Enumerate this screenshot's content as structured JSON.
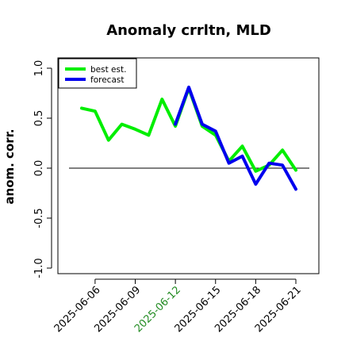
{
  "chart_data": {
    "type": "line",
    "title": "Anomaly crrltn, MLD",
    "xlabel": "",
    "ylabel": "anom. corr.",
    "ylim": [
      -1.0,
      1.0
    ],
    "yticks": [
      "-1.0",
      "-0.5",
      "0.0",
      "0.5",
      "1.0"
    ],
    "ytick_values": [
      -1.0,
      -0.5,
      0.0,
      0.5,
      1.0
    ],
    "xticks": [
      "2025-06-06",
      "2025-06-09",
      "2025-06-12",
      "2025-06-15",
      "2025-06-18",
      "2025-06-21"
    ],
    "xtick_colors": [
      "#000000",
      "#000000",
      "#228b22",
      "#000000",
      "#000000",
      "#000000"
    ],
    "x": [
      "2025-06-05",
      "2025-06-06",
      "2025-06-07",
      "2025-06-08",
      "2025-06-09",
      "2025-06-10",
      "2025-06-11",
      "2025-06-12",
      "2025-06-13",
      "2025-06-14",
      "2025-06-15",
      "2025-06-16",
      "2025-06-17",
      "2025-06-18",
      "2025-06-19",
      "2025-06-20",
      "2025-06-21"
    ],
    "series": [
      {
        "name": "best est.",
        "color": "#00ee00",
        "values": [
          0.6,
          0.57,
          0.28,
          0.44,
          0.39,
          0.33,
          0.69,
          0.42,
          0.8,
          0.42,
          0.33,
          0.07,
          0.22,
          -0.03,
          0.03,
          0.18,
          -0.02
        ]
      },
      {
        "name": "forecast",
        "color": "#0000ee",
        "values": [
          null,
          null,
          null,
          null,
          null,
          null,
          null,
          0.44,
          0.81,
          0.44,
          0.37,
          0.05,
          0.12,
          -0.16,
          0.05,
          0.03,
          -0.21
        ]
      }
    ],
    "grid": false,
    "legend_position": "top-left",
    "reference_line": 0.0
  }
}
